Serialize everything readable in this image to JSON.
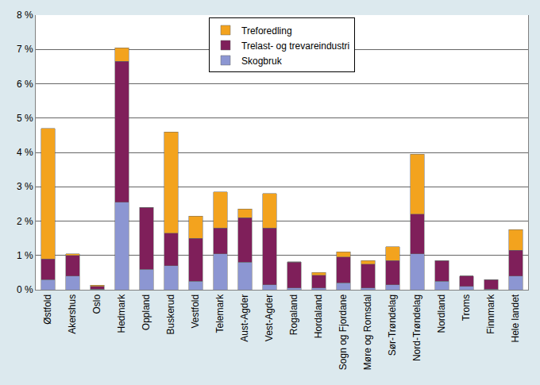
{
  "chart_data": {
    "type": "bar",
    "stacked": true,
    "categories": [
      "Østfold",
      "Akershus",
      "Oslo",
      "Hedmark",
      "Oppland",
      "Buskerud",
      "Vestfold",
      "Telemark",
      "Aust-Agder",
      "Vest-Agder",
      "Rogaland",
      "Hordaland",
      "Sogn og Fjordane",
      "Møre og Romsdal",
      "Sør-Trøndelag",
      "Nord-Trøndelag",
      "Nordland",
      "Troms",
      "Finnmark",
      "Hele landet"
    ],
    "series": [
      {
        "name": "Skogbruk",
        "color": "#8c96d2",
        "values": [
          0.3,
          0.4,
          0.02,
          2.55,
          0.6,
          0.7,
          0.25,
          1.05,
          0.8,
          0.15,
          0.05,
          0.05,
          0.2,
          0.05,
          0.15,
          1.05,
          0.25,
          0.1,
          0.02,
          0.4
        ]
      },
      {
        "name": "Trelast- og trevareindustri",
        "color": "#7f1f5a",
        "values": [
          0.6,
          0.6,
          0.08,
          4.1,
          1.8,
          0.95,
          1.25,
          0.75,
          1.3,
          1.65,
          0.75,
          0.37,
          0.75,
          0.7,
          0.7,
          1.15,
          0.6,
          0.3,
          0.28,
          0.75
        ]
      },
      {
        "name": "Treforedling",
        "color": "#f3a31e",
        "values": [
          3.8,
          0.05,
          0.03,
          0.4,
          0,
          2.95,
          0.65,
          1.05,
          0.25,
          1.0,
          0.02,
          0.08,
          0.15,
          0.1,
          0.4,
          1.75,
          0,
          0,
          0,
          0.6
        ]
      }
    ],
    "ylim": [
      0,
      8
    ],
    "yticks": [
      {
        "value": 0,
        "label": "0 %"
      },
      {
        "value": 1,
        "label": "1 %"
      },
      {
        "value": 2,
        "label": "2 %"
      },
      {
        "value": 3,
        "label": "3 %"
      },
      {
        "value": 4,
        "label": "4 %"
      },
      {
        "value": 5,
        "label": "5 %"
      },
      {
        "value": 6,
        "label": "6 %"
      },
      {
        "value": 7,
        "label": "7 %"
      },
      {
        "value": 8,
        "label": "8 %"
      }
    ],
    "grid": true,
    "legend": "top"
  }
}
